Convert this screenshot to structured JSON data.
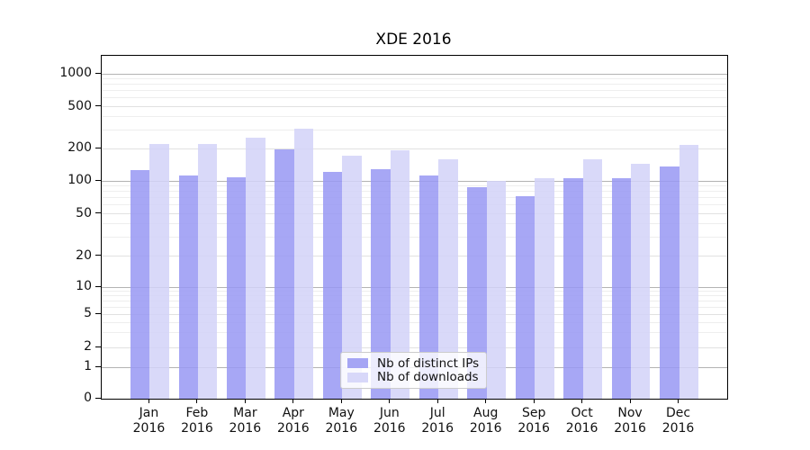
{
  "title": "XDE 2016",
  "chart_data": {
    "type": "bar",
    "title": "XDE 2016",
    "categories": [
      {
        "month": "Jan",
        "year": "2016"
      },
      {
        "month": "Feb",
        "year": "2016"
      },
      {
        "month": "Mar",
        "year": "2016"
      },
      {
        "month": "Apr",
        "year": "2016"
      },
      {
        "month": "May",
        "year": "2016"
      },
      {
        "month": "Jun",
        "year": "2016"
      },
      {
        "month": "Jul",
        "year": "2016"
      },
      {
        "month": "Aug",
        "year": "2016"
      },
      {
        "month": "Sep",
        "year": "2016"
      },
      {
        "month": "Oct",
        "year": "2016"
      },
      {
        "month": "Nov",
        "year": "2016"
      },
      {
        "month": "Dec",
        "year": "2016"
      }
    ],
    "series": [
      {
        "name": "Nb of distinct IPs",
        "values": [
          125,
          113,
          109,
          198,
          121,
          129,
          112,
          87,
          72,
          106,
          105,
          137
        ]
      },
      {
        "name": "Nb of downloads",
        "values": [
          220,
          221,
          252,
          311,
          170,
          192,
          158,
          100,
          107,
          158,
          144,
          216
        ]
      }
    ],
    "y_scale": "symlog",
    "y_ticks": [
      0,
      1,
      2,
      5,
      10,
      20,
      50,
      100,
      200,
      500,
      1000
    ],
    "ylim": [
      0,
      1500
    ],
    "xlabel": "",
    "ylabel": "",
    "grid": true,
    "legend_position": "lower center"
  },
  "legend": {
    "items": [
      {
        "label": "Nb of distinct IPs"
      },
      {
        "label": "Nb of downloads"
      }
    ]
  },
  "colors": {
    "bar_ips": "#9898f3",
    "bar_downloads": "#d2d2f8",
    "legend_swatch_ips": "#a5a5f4",
    "legend_swatch_downloads": "#d8d8f9",
    "grid_decade": "#b3b3b3",
    "grid_major": "#e1e1e1",
    "grid_minor": "#eeeeee",
    "axis": "#000000"
  }
}
